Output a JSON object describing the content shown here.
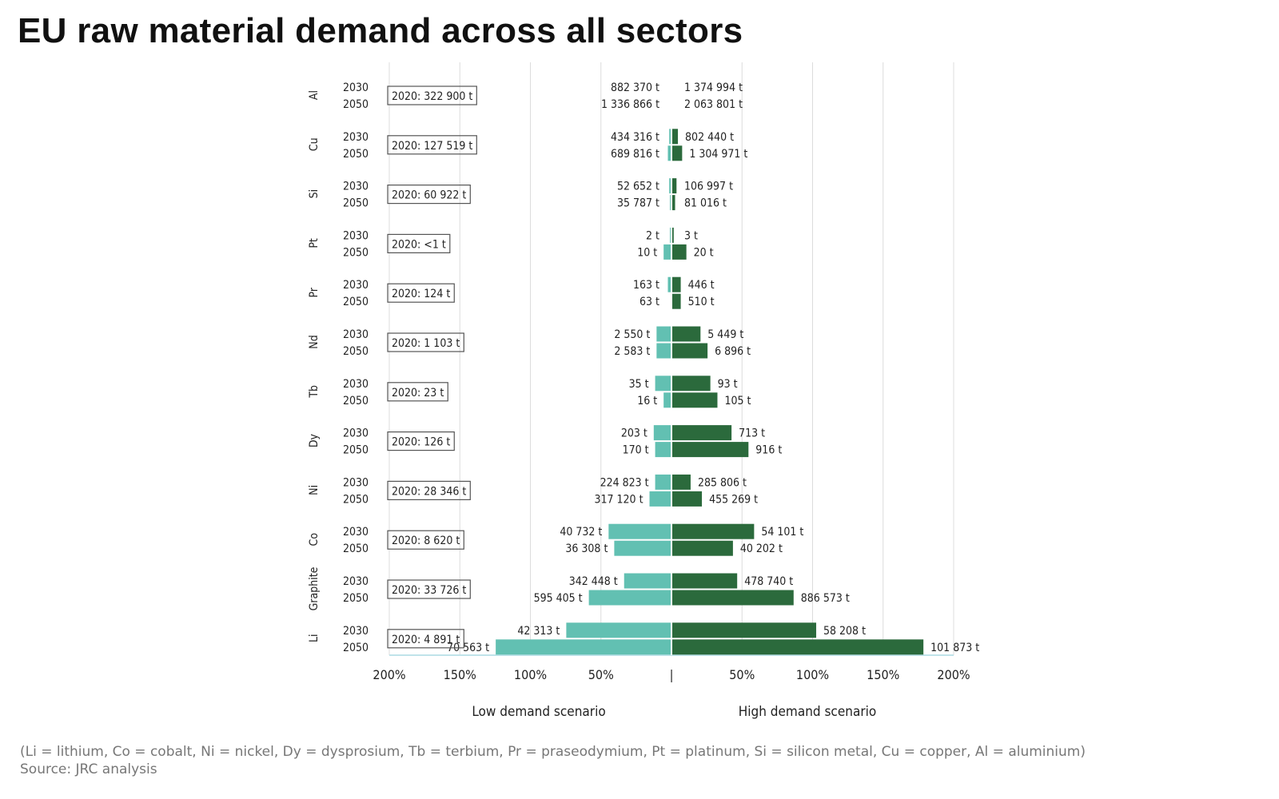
{
  "title": "EU raw material demand across all sectors",
  "footnote": "(Li = lithium, Co = cobalt, Ni = nickel, Dy = dysprosium, Tb = terbium, Pr = praseodymium, Pt = platinum, Si = silicon metal, Cu = copper, Al = aluminium)",
  "source": "Source: JRC analysis",
  "chart_data": {
    "type": "bar",
    "orientation": "horizontal-diverging",
    "xlabel_left": "Low demand scenario",
    "xlabel_right": "High demand scenario",
    "xlim": [
      -200,
      200
    ],
    "tick_labels": [
      "200%",
      "150%",
      "100%",
      "50%",
      "|",
      "50%",
      "100%",
      "150%",
      "200%"
    ],
    "grid": true,
    "colors": {
      "low": "#62c0b2",
      "high": "#2b6a3c"
    },
    "years": [
      "2030",
      "2050"
    ],
    "materials": [
      {
        "name": "Al",
        "baseline": "2020:   322 900 t",
        "low": [
          0,
          0
        ],
        "high": [
          0,
          0
        ],
        "low_labels": [
          "882 370 t",
          "1 336 866 t"
        ],
        "high_labels": [
          "1 374 994 t",
          "2 063 801 t"
        ]
      },
      {
        "name": "Cu",
        "baseline": "2020:   127 519 t",
        "low": [
          1,
          2
        ],
        "high": [
          4,
          7
        ],
        "low_labels": [
          "434 316 t",
          "689 816 t"
        ],
        "high_labels": [
          "802 440 t",
          "1 304 971 t"
        ]
      },
      {
        "name": "Si",
        "baseline": "2020:   60 922 t",
        "low": [
          1,
          0.5
        ],
        "high": [
          3,
          2
        ],
        "low_labels": [
          "52 652 t",
          "35 787 t"
        ],
        "high_labels": [
          "106 997 t",
          "81 016 t"
        ]
      },
      {
        "name": "Pt",
        "baseline": "2020: <1 t",
        "low": [
          0.5,
          5
        ],
        "high": [
          1,
          10
        ],
        "low_labels": [
          "2 t",
          "10 t"
        ],
        "high_labels": [
          "3 t",
          "20 t"
        ]
      },
      {
        "name": "Pr",
        "baseline": "2020:   124 t",
        "low": [
          2,
          0
        ],
        "high": [
          6,
          6
        ],
        "low_labels": [
          "163 t",
          "63 t"
        ],
        "high_labels": [
          "446 t",
          "510 t"
        ]
      },
      {
        "name": "Nd",
        "baseline": "2020:   1 103 t",
        "low": [
          10,
          10
        ],
        "high": [
          20,
          25
        ],
        "low_labels": [
          "2 550 t",
          "2 583 t"
        ],
        "high_labels": [
          "5 449 t",
          "6 896 t"
        ]
      },
      {
        "name": "Tb",
        "baseline": "2020:   23 t",
        "low": [
          11,
          5
        ],
        "high": [
          27,
          32
        ],
        "low_labels": [
          "35 t",
          "16 t"
        ],
        "high_labels": [
          "93 t",
          "105 t"
        ]
      },
      {
        "name": "Dy",
        "baseline": "2020:   126 t",
        "low": [
          12,
          11
        ],
        "high": [
          42,
          54
        ],
        "low_labels": [
          "203 t",
          "170 t"
        ],
        "high_labels": [
          "713 t",
          "916 t"
        ]
      },
      {
        "name": "Ni",
        "baseline": "2020:   28 346 t",
        "low": [
          11,
          15
        ],
        "high": [
          13,
          21
        ],
        "low_labels": [
          "224 823 t",
          "317 120 t"
        ],
        "high_labels": [
          "285 806 t",
          "455 269 t"
        ]
      },
      {
        "name": "Co",
        "baseline": "2020:   8 620 t",
        "low": [
          44,
          40
        ],
        "high": [
          58,
          43
        ],
        "low_labels": [
          "40 732 t",
          "36 308 t"
        ],
        "high_labels": [
          "54 101 t",
          "40 202 t"
        ]
      },
      {
        "name": "Graphite",
        "baseline": "2020:   33 726 t",
        "low": [
          33,
          58
        ],
        "high": [
          46,
          86
        ],
        "low_labels": [
          "342 448 t",
          "595 405 t"
        ],
        "high_labels": [
          "478 740 t",
          "886 573 t"
        ]
      },
      {
        "name": "Li",
        "baseline": "2020:   4 891 t",
        "low": [
          74,
          124
        ],
        "high": [
          102,
          178
        ],
        "low_labels": [
          "42 313 t",
          "70 563 t"
        ],
        "high_labels": [
          "58 208 t",
          "101 873 t"
        ]
      }
    ]
  }
}
